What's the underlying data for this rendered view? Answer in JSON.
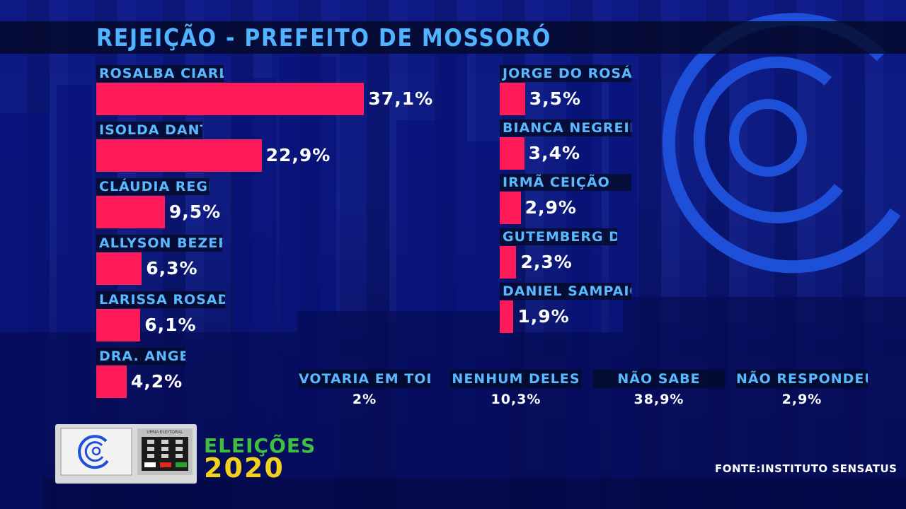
{
  "title": "REJEIÇÃO - PREFEITO DE MOSSORÓ",
  "source": "FONTE:INSTITUTO SENSATUS",
  "logo": {
    "eleicoes": "ELEIÇÕES",
    "year": "2020",
    "urna_text": "URNA ELEITORAL"
  },
  "colors": {
    "bar": "#ff1a5a",
    "label": "#5ab8ff",
    "background": "#0a1a8a"
  },
  "chart_data": {
    "type": "bar",
    "title": "REJEIÇÃO - PREFEITO DE MOSSORÓ",
    "categories": [
      "ROSALBA CIARLINI",
      "ISOLDA DANTAS",
      "CLÁUDIA REGINA",
      "ALLYSON BEZERRA",
      "LARISSA ROSADO",
      "DRA. ANGELA",
      "JORGE DO ROSÁRIO",
      "BIANCA NEGREIROS",
      "IRMÃ CEIÇÃO",
      "GUTEMBERG DIAS",
      "DANIEL SAMPAIO"
    ],
    "values": [
      37.1,
      22.9,
      9.5,
      6.3,
      6.1,
      4.2,
      3.5,
      3.4,
      2.9,
      2.3,
      1.9
    ],
    "value_labels": [
      "37,1%",
      "22,9%",
      "9,5%",
      "6,3%",
      "6,1%",
      "4,2%",
      "3,5%",
      "3,4%",
      "2,9%",
      "2,3%",
      "1,9%"
    ]
  },
  "others": [
    {
      "label": "VOTARIA EM TODOS",
      "value": "2%"
    },
    {
      "label": "NENHUM DELES",
      "value": "10,3%"
    },
    {
      "label": "NÃO SABE",
      "value": "38,9%"
    },
    {
      "label": "NÃO RESPONDEU",
      "value": "2,9%"
    }
  ]
}
